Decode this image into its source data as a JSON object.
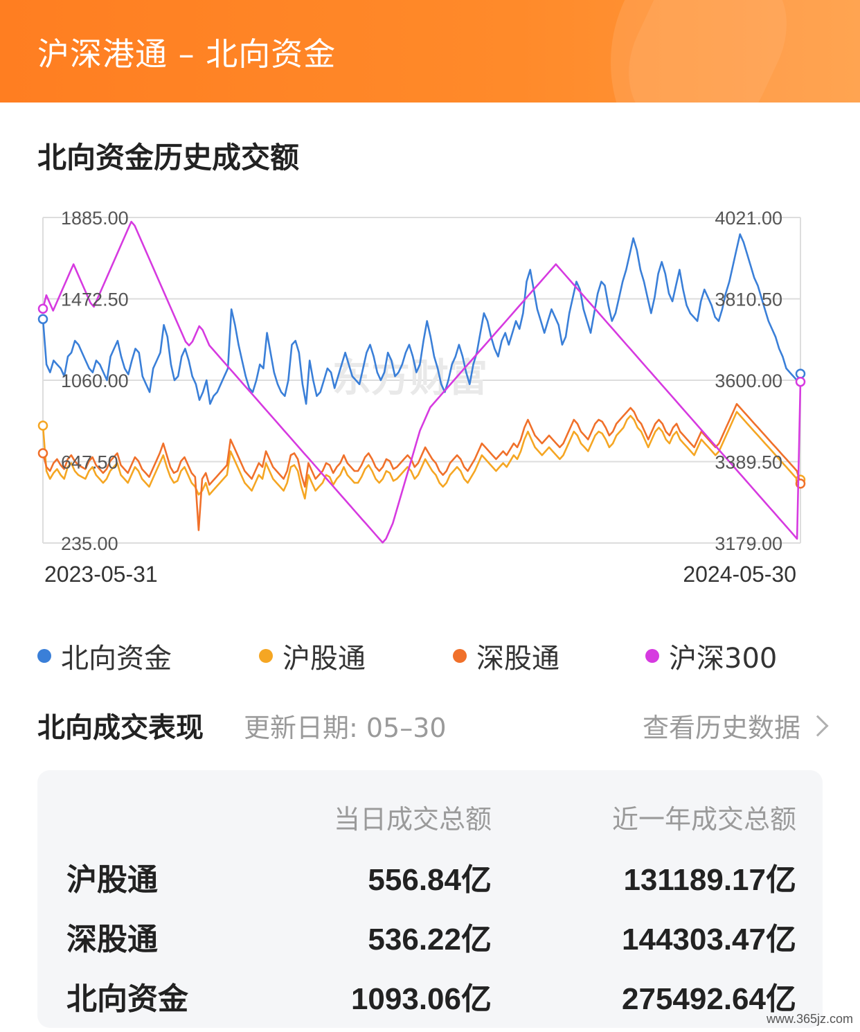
{
  "header": {
    "title": "沪深港通 – 北向资金"
  },
  "chart_section": {
    "title": "北向资金历史成交额"
  },
  "chart_data": {
    "type": "line",
    "watermark": "东方财富",
    "x_start": "2023-05-31",
    "x_end": "2024-05-30",
    "left_axis": {
      "ticks": [
        "1885.00",
        "1472.50",
        "1060.00",
        "647.50",
        "235.00"
      ],
      "range": [
        235,
        1885
      ]
    },
    "right_axis": {
      "ticks": [
        "4021.00",
        "3810.50",
        "3600.00",
        "3389.50",
        "3179.00"
      ],
      "range": [
        3179,
        4021
      ]
    },
    "series": [
      {
        "name": "北向资金",
        "color": "#3a7fd8",
        "axis": "left",
        "values": [
          1370,
          1140,
          1100,
          1160,
          1140,
          1120,
          1080,
          1180,
          1200,
          1260,
          1240,
          1200,
          1160,
          1120,
          1100,
          1160,
          1140,
          1100,
          1060,
          1180,
          1220,
          1260,
          1180,
          1120,
          1090,
          1160,
          1220,
          1200,
          1080,
          1040,
          1000,
          1120,
          1160,
          1200,
          1340,
          1280,
          1140,
          1060,
          1080,
          1180,
          1220,
          1160,
          1080,
          1040,
          960,
          1000,
          1060,
          940,
          980,
          1000,
          1040,
          1080,
          1120,
          1420,
          1340,
          1240,
          1160,
          1080,
          1020,
          1000,
          1060,
          1140,
          1120,
          1300,
          1200,
          1100,
          1040,
          1000,
          980,
          1060,
          1240,
          1260,
          1200,
          1040,
          940,
          1160,
          1060,
          980,
          1000,
          1060,
          1120,
          1100,
          1020,
          1080,
          1140,
          1200,
          1140,
          1080,
          1060,
          1040,
          1120,
          1200,
          1240,
          1180,
          1100,
          1060,
          1100,
          1200,
          1160,
          1080,
          1100,
          1140,
          1200,
          1240,
          1180,
          1100,
          1140,
          1260,
          1360,
          1280,
          1180,
          1120,
          1040,
          1000,
          1060,
          1140,
          1180,
          1240,
          1180,
          1100,
          1040,
          1140,
          1200,
          1300,
          1400,
          1360,
          1280,
          1220,
          1180,
          1260,
          1300,
          1240,
          1300,
          1360,
          1320,
          1400,
          1560,
          1620,
          1520,
          1420,
          1360,
          1300,
          1360,
          1420,
          1380,
          1340,
          1240,
          1280,
          1400,
          1480,
          1560,
          1520,
          1420,
          1360,
          1300,
          1400,
          1500,
          1560,
          1540,
          1440,
          1360,
          1400,
          1480,
          1560,
          1620,
          1700,
          1780,
          1720,
          1620,
          1560,
          1480,
          1400,
          1480,
          1600,
          1660,
          1600,
          1500,
          1460,
          1540,
          1620,
          1520,
          1440,
          1400,
          1380,
          1360,
          1460,
          1520,
          1480,
          1440,
          1380,
          1360,
          1420,
          1500,
          1560,
          1640,
          1720,
          1800,
          1760,
          1700,
          1640,
          1580,
          1540,
          1480,
          1420,
          1360,
          1320,
          1280,
          1220,
          1180,
          1120,
          1100,
          1080,
          1060,
          1093
        ]
      },
      {
        "name": "沪股通",
        "color": "#f5a623",
        "axis": "left",
        "values": [
          830,
          600,
          560,
          590,
          610,
          580,
          560,
          620,
          640,
          600,
          580,
          570,
          560,
          600,
          620,
          580,
          560,
          540,
          560,
          600,
          620,
          640,
          580,
          560,
          540,
          580,
          620,
          600,
          560,
          540,
          520,
          560,
          600,
          640,
          680,
          620,
          570,
          540,
          550,
          600,
          620,
          580,
          540,
          520,
          480,
          500,
          540,
          480,
          500,
          520,
          540,
          560,
          580,
          700,
          660,
          620,
          580,
          540,
          520,
          500,
          540,
          580,
          560,
          640,
          600,
          560,
          540,
          520,
          500,
          540,
          620,
          630,
          600,
          520,
          460,
          580,
          540,
          500,
          520,
          540,
          580,
          570,
          530,
          560,
          580,
          620,
          580,
          560,
          540,
          540,
          570,
          610,
          630,
          600,
          560,
          540,
          560,
          600,
          590,
          550,
          560,
          580,
          600,
          620,
          600,
          560,
          580,
          620,
          660,
          630,
          600,
          580,
          540,
          520,
          540,
          580,
          600,
          620,
          600,
          560,
          540,
          570,
          600,
          640,
          680,
          660,
          640,
          620,
          600,
          620,
          640,
          620,
          650,
          680,
          660,
          700,
          760,
          800,
          760,
          720,
          700,
          680,
          700,
          720,
          700,
          680,
          660,
          680,
          720,
          760,
          800,
          780,
          740,
          720,
          700,
          740,
          780,
          800,
          790,
          760,
          720,
          740,
          780,
          800,
          820,
          860,
          880,
          860,
          820,
          800,
          760,
          720,
          760,
          800,
          820,
          800,
          760,
          740,
          780,
          800,
          760,
          740,
          720,
          700,
          680,
          720,
          760,
          740,
          720,
          700,
          680,
          700,
          740,
          780,
          820,
          860,
          900,
          880,
          860,
          840,
          820,
          800,
          780,
          760,
          740,
          720,
          700,
          680,
          660,
          640,
          620,
          600,
          580,
          560,
          556
        ]
      },
      {
        "name": "深股通",
        "color": "#f0702a",
        "axis": "left",
        "values": [
          690,
          620,
          600,
          640,
          660,
          630,
          610,
          660,
          680,
          650,
          630,
          620,
          610,
          650,
          670,
          630,
          610,
          590,
          610,
          650,
          670,
          690,
          630,
          610,
          590,
          630,
          670,
          650,
          610,
          590,
          570,
          610,
          650,
          690,
          740,
          680,
          620,
          590,
          600,
          650,
          670,
          630,
          590,
          570,
          300,
          560,
          590,
          530,
          550,
          570,
          590,
          610,
          630,
          760,
          720,
          680,
          640,
          600,
          580,
          560,
          600,
          640,
          620,
          700,
          660,
          620,
          600,
          580,
          560,
          600,
          680,
          690,
          660,
          580,
          520,
          640,
          600,
          560,
          580,
          600,
          640,
          630,
          590,
          620,
          640,
          680,
          640,
          620,
          600,
          600,
          630,
          670,
          690,
          660,
          620,
          600,
          620,
          660,
          650,
          610,
          620,
          640,
          660,
          680,
          660,
          620,
          640,
          680,
          720,
          690,
          660,
          640,
          600,
          580,
          600,
          640,
          660,
          680,
          660,
          620,
          600,
          630,
          660,
          700,
          740,
          720,
          700,
          680,
          660,
          680,
          700,
          680,
          710,
          740,
          720,
          760,
          820,
          860,
          820,
          780,
          760,
          740,
          760,
          780,
          760,
          740,
          720,
          740,
          780,
          820,
          860,
          840,
          800,
          780,
          760,
          800,
          840,
          860,
          850,
          820,
          780,
          800,
          840,
          860,
          880,
          900,
          920,
          900,
          860,
          840,
          800,
          760,
          800,
          840,
          860,
          840,
          800,
          780,
          820,
          840,
          800,
          780,
          760,
          740,
          720,
          760,
          800,
          780,
          760,
          740,
          720,
          740,
          780,
          820,
          860,
          900,
          940,
          920,
          900,
          880,
          860,
          840,
          820,
          800,
          780,
          760,
          740,
          720,
          700,
          680,
          660,
          640,
          620,
          600,
          536
        ]
      },
      {
        "name": "沪深300",
        "color": "#d63ae0",
        "axis": "right",
        "values": [
          3785,
          3820,
          3800,
          3780,
          3800,
          3820,
          3840,
          3860,
          3880,
          3900,
          3880,
          3860,
          3840,
          3820,
          3800,
          3790,
          3810,
          3830,
          3850,
          3870,
          3890,
          3910,
          3930,
          3950,
          3970,
          3990,
          4010,
          4000,
          3980,
          3960,
          3940,
          3920,
          3900,
          3880,
          3860,
          3840,
          3820,
          3800,
          3780,
          3760,
          3740,
          3720,
          3700,
          3690,
          3700,
          3720,
          3740,
          3730,
          3710,
          3690,
          3680,
          3670,
          3660,
          3650,
          3640,
          3630,
          3620,
          3610,
          3600,
          3590,
          3580,
          3570,
          3560,
          3550,
          3540,
          3530,
          3520,
          3510,
          3500,
          3490,
          3480,
          3470,
          3460,
          3450,
          3440,
          3430,
          3420,
          3410,
          3400,
          3390,
          3380,
          3370,
          3360,
          3350,
          3340,
          3330,
          3320,
          3310,
          3300,
          3290,
          3280,
          3270,
          3260,
          3250,
          3240,
          3230,
          3220,
          3210,
          3200,
          3190,
          3180,
          3190,
          3210,
          3230,
          3260,
          3290,
          3320,
          3350,
          3380,
          3410,
          3440,
          3470,
          3490,
          3510,
          3530,
          3540,
          3550,
          3560,
          3570,
          3580,
          3590,
          3600,
          3610,
          3620,
          3630,
          3640,
          3650,
          3660,
          3670,
          3680,
          3690,
          3700,
          3710,
          3720,
          3730,
          3740,
          3750,
          3760,
          3770,
          3780,
          3790,
          3800,
          3810,
          3820,
          3830,
          3840,
          3850,
          3860,
          3870,
          3880,
          3890,
          3900,
          3890,
          3880,
          3870,
          3860,
          3850,
          3840,
          3830,
          3820,
          3810,
          3800,
          3790,
          3780,
          3770,
          3760,
          3750,
          3740,
          3730,
          3720,
          3710,
          3700,
          3690,
          3680,
          3670,
          3660,
          3650,
          3640,
          3630,
          3620,
          3610,
          3600,
          3590,
          3580,
          3570,
          3560,
          3550,
          3540,
          3530,
          3520,
          3510,
          3500,
          3490,
          3480,
          3470,
          3460,
          3450,
          3440,
          3430,
          3420,
          3410,
          3400,
          3390,
          3380,
          3370,
          3360,
          3350,
          3340,
          3330,
          3320,
          3310,
          3300,
          3290,
          3280,
          3270,
          3260,
          3250,
          3240,
          3230,
          3220,
          3210,
          3200,
          3190,
          3596
        ]
      }
    ]
  },
  "legend": [
    {
      "label": "北向资金",
      "color": "#3a7fd8"
    },
    {
      "label": "沪股通",
      "color": "#f5a623"
    },
    {
      "label": "深股通",
      "color": "#f0702a"
    },
    {
      "label": "沪深300",
      "color": "#d63ae0"
    }
  ],
  "performance": {
    "title": "北向成交表现",
    "update_label": "更新日期: 05–30",
    "history_link": "查看历史数据",
    "col_today": "当日成交总额",
    "col_year": "近一年成交总额",
    "rows": [
      {
        "name": "沪股通",
        "today": "556.84亿",
        "year": "131189.17亿"
      },
      {
        "name": "深股通",
        "today": "536.22亿",
        "year": "144303.47亿"
      },
      {
        "name": "北向资金",
        "today": "1093.06亿",
        "year": "275492.64亿"
      }
    ]
  },
  "footer": {
    "url": "www.365jz.com"
  }
}
